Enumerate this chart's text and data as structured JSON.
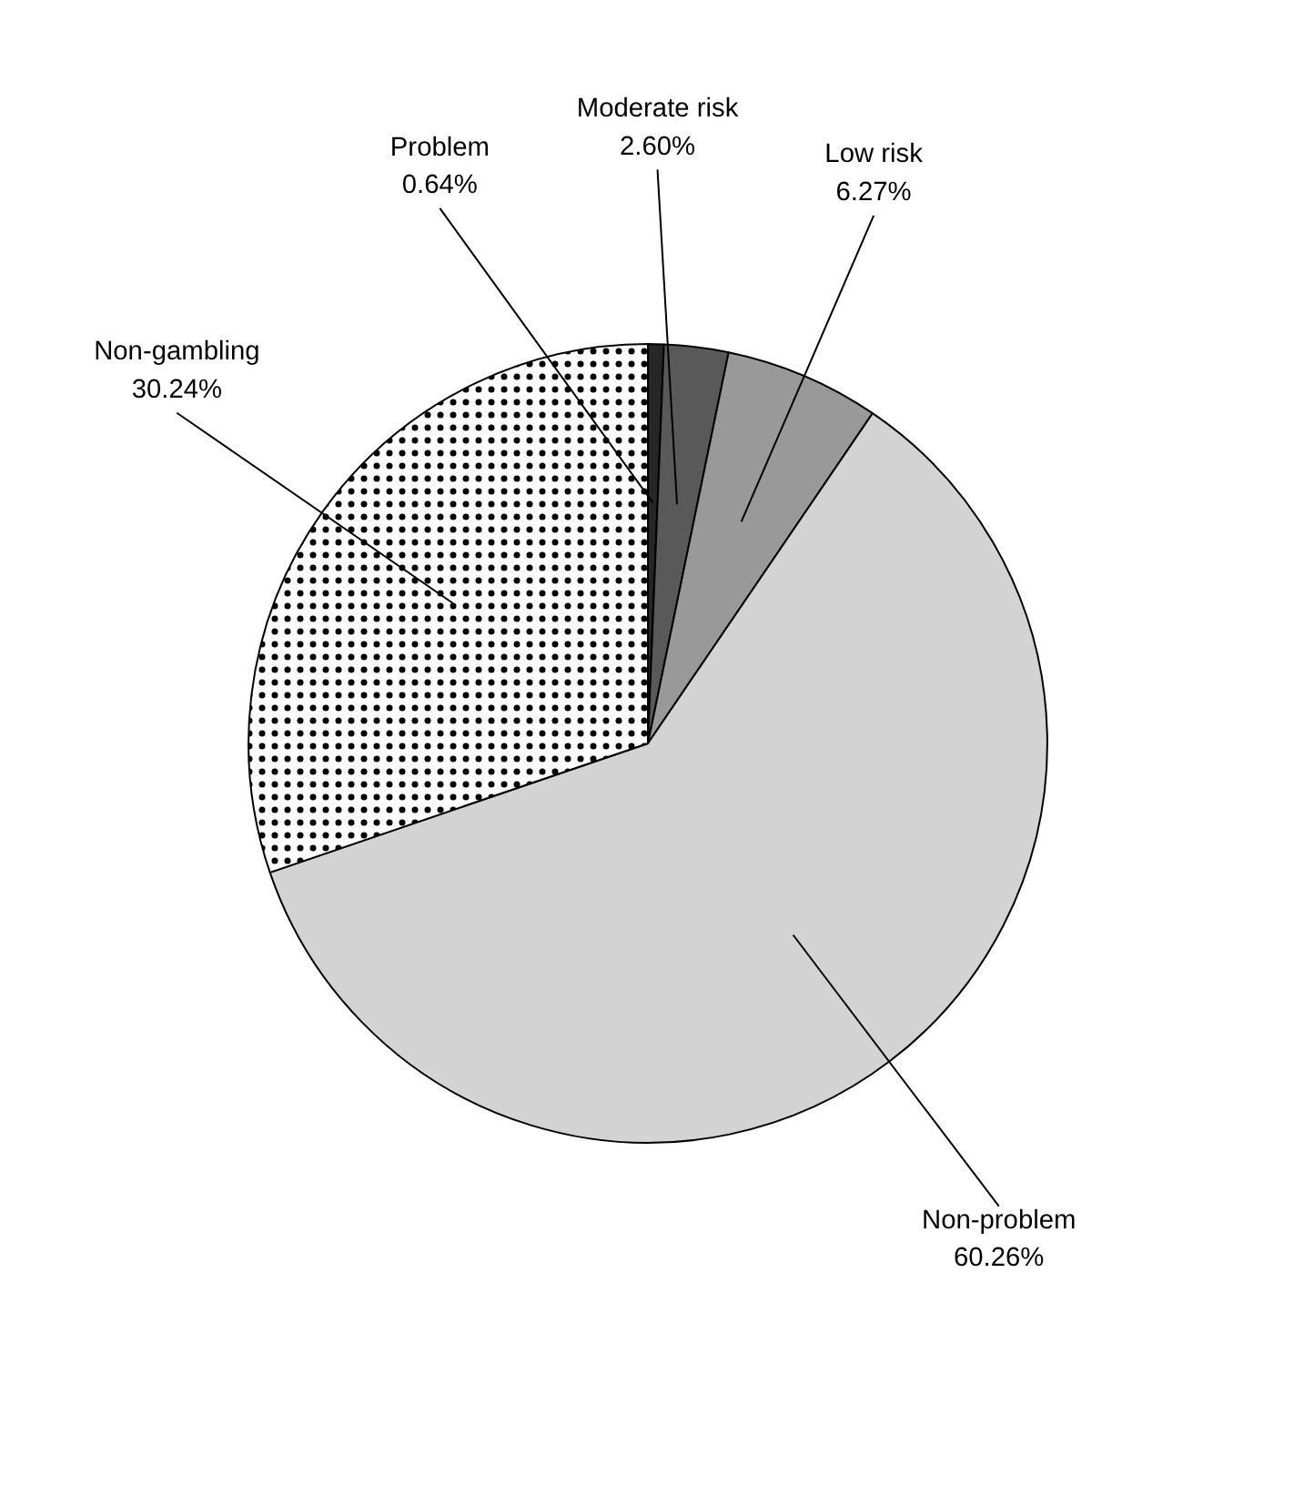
{
  "chart_data": {
    "type": "pie",
    "categories": [
      "Problem",
      "Moderate risk",
      "Low risk",
      "Non-problem",
      "Non-gambling"
    ],
    "values": [
      0.64,
      2.6,
      6.27,
      60.26,
      30.24
    ],
    "value_labels": [
      "0.64%",
      "2.60%",
      "6.27%",
      "60.26%",
      "30.24%"
    ],
    "colors": [
      "#262626",
      "#595959",
      "#999999",
      "#d3d3d3",
      "#ffffff"
    ]
  }
}
